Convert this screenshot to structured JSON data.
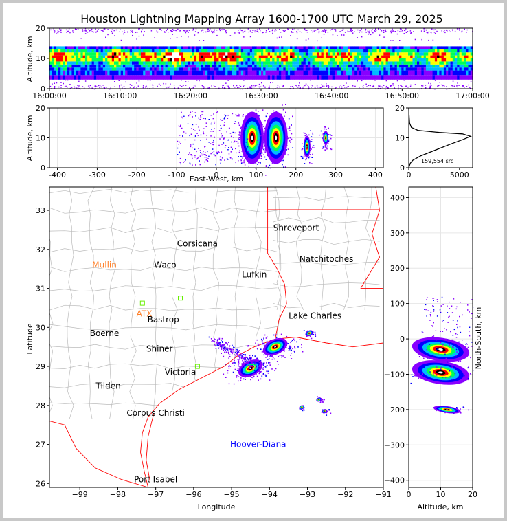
{
  "title": "Houston Lightning Mapping Array 1600-1700 UTC March 29, 2025",
  "chart_data": [
    {
      "panel": "altitude-vs-time",
      "type": "heatmap",
      "ylabel": "Altitude, km",
      "xlim": [
        "16:00:00",
        "17:00:00"
      ],
      "ylim": [
        0,
        20
      ],
      "x_ticks": [
        "16:00:00",
        "16:10:00",
        "16:20:00",
        "16:30:00",
        "16:40:00",
        "16:50:00",
        "17:00:00"
      ],
      "y_ticks": [
        0,
        10,
        20
      ],
      "band_center_km": 10,
      "band_extent_km": [
        3,
        14
      ]
    },
    {
      "panel": "altitude-vs-east-west",
      "type": "heatmap",
      "xlabel": "East-West, km",
      "ylabel": "Altitude, km",
      "xlim": [
        -420,
        420
      ],
      "ylim": [
        0,
        20
      ],
      "x_ticks": [
        -400,
        -300,
        -200,
        -100,
        0,
        100,
        200,
        300,
        400
      ],
      "y_ticks": [
        0,
        10,
        20
      ],
      "cells": [
        {
          "x": 90,
          "z": 10,
          "intensity": "max"
        },
        {
          "x": 150,
          "z": 10,
          "intensity": "max"
        },
        {
          "x": 228,
          "z": 7,
          "intensity": "medium"
        },
        {
          "x": 275,
          "z": 10,
          "intensity": "low"
        }
      ]
    },
    {
      "panel": "source-count-vs-altitude",
      "type": "line",
      "xlim": [
        0,
        6300
      ],
      "ylim": [
        0,
        20
      ],
      "x_ticks": [
        0,
        5000
      ],
      "y_ticks": [
        0,
        10,
        20
      ],
      "annotation": "159,554 src",
      "profile": [
        {
          "count": 0,
          "alt": 0
        },
        {
          "count": 150,
          "alt": 1.5
        },
        {
          "count": 400,
          "alt": 2.5
        },
        {
          "count": 1200,
          "alt": 4
        },
        {
          "count": 2700,
          "alt": 6
        },
        {
          "count": 4200,
          "alt": 8
        },
        {
          "count": 5400,
          "alt": 9.5
        },
        {
          "count": 6100,
          "alt": 10.5
        },
        {
          "count": 5300,
          "alt": 11.3
        },
        {
          "count": 3000,
          "alt": 11.8
        },
        {
          "count": 900,
          "alt": 12.5
        },
        {
          "count": 250,
          "alt": 13.5
        },
        {
          "count": 80,
          "alt": 15
        },
        {
          "count": 20,
          "alt": 18
        },
        {
          "count": 0,
          "alt": 20
        }
      ]
    },
    {
      "panel": "map",
      "type": "scatter",
      "xlabel": "Longitude",
      "ylabel": "Latitude",
      "xlim": [
        -99.8,
        -91
      ],
      "ylim": [
        25.9,
        33.6
      ],
      "x_ticks": [
        -99,
        -98,
        -97,
        -96,
        -95,
        -94,
        -93,
        -92,
        -91
      ],
      "y_ticks": [
        26,
        27,
        28,
        29,
        30,
        31,
        32,
        33
      ],
      "cities": [
        {
          "name": "Shreveport",
          "lon": -93.3,
          "lat": 32.55
        },
        {
          "name": "Corsicana",
          "lon": -95.9,
          "lat": 32.15
        },
        {
          "name": "Natchitoches",
          "lon": -92.5,
          "lat": 31.75
        },
        {
          "name": "Mullin",
          "lon": -98.35,
          "lat": 31.6
        },
        {
          "name": "Waco",
          "lon": -96.75,
          "lat": 31.6
        },
        {
          "name": "Lufkin",
          "lon": -94.4,
          "lat": 31.35
        },
        {
          "name": "Lake Charles",
          "lon": -92.8,
          "lat": 30.3
        },
        {
          "name": "ATX",
          "lon": -97.3,
          "lat": 30.35
        },
        {
          "name": "Bastrop",
          "lon": -96.8,
          "lat": 30.2
        },
        {
          "name": "Boerne",
          "lon": -98.35,
          "lat": 29.85
        },
        {
          "name": "Shiner",
          "lon": -96.9,
          "lat": 29.45
        },
        {
          "name": "Victoria",
          "lon": -96.35,
          "lat": 28.85
        },
        {
          "name": "Tilden",
          "lon": -98.25,
          "lat": 28.5
        },
        {
          "name": "Corpus Christi",
          "lon": -97.0,
          "lat": 27.8
        },
        {
          "name": "Hoover-Diana",
          "lon": -94.3,
          "lat": 27.0
        },
        {
          "name": "Port Isabel",
          "lon": -97.0,
          "lat": 26.1
        }
      ],
      "storm_cells": [
        {
          "lon": -93.85,
          "lat": 29.5,
          "intensity": "max"
        },
        {
          "lon": -94.5,
          "lat": 28.95,
          "intensity": "max"
        },
        {
          "lon": -92.95,
          "lat": 29.85,
          "intensity": "medium"
        },
        {
          "lon": -93.15,
          "lat": 27.95,
          "intensity": "low"
        },
        {
          "lon": -92.55,
          "lat": 27.85,
          "intensity": "low"
        },
        {
          "lon": -92.7,
          "lat": 28.15,
          "intensity": "low"
        }
      ]
    },
    {
      "panel": "north-south-vs-altitude",
      "type": "heatmap",
      "xlabel": "Altitude, km",
      "ylabel": "North-South, km",
      "xlim": [
        0,
        20
      ],
      "ylim": [
        -420,
        430
      ],
      "x_ticks": [
        0,
        10,
        20
      ],
      "y_ticks": [
        -400,
        -300,
        -200,
        -100,
        0,
        100,
        200,
        300,
        400
      ],
      "cells": [
        {
          "z": 10,
          "y": -30,
          "intensity": "max"
        },
        {
          "z": 10,
          "y": -95,
          "intensity": "max"
        },
        {
          "z": 12,
          "y": -200,
          "intensity": "low"
        }
      ]
    }
  ],
  "colors": {
    "density_scale": [
      "#8800ff",
      "#0000ff",
      "#00bbff",
      "#00ff55",
      "#ffff00",
      "#ff0000",
      "#000000",
      "#ffffff"
    ],
    "state_border": "#ff0000",
    "county_border": "#bbbbbb",
    "city_label": "#000000",
    "station_label_orange": "#ff7f27",
    "hoover_diana_label": "#0000ff",
    "station_marker_green": "#66ee00"
  }
}
